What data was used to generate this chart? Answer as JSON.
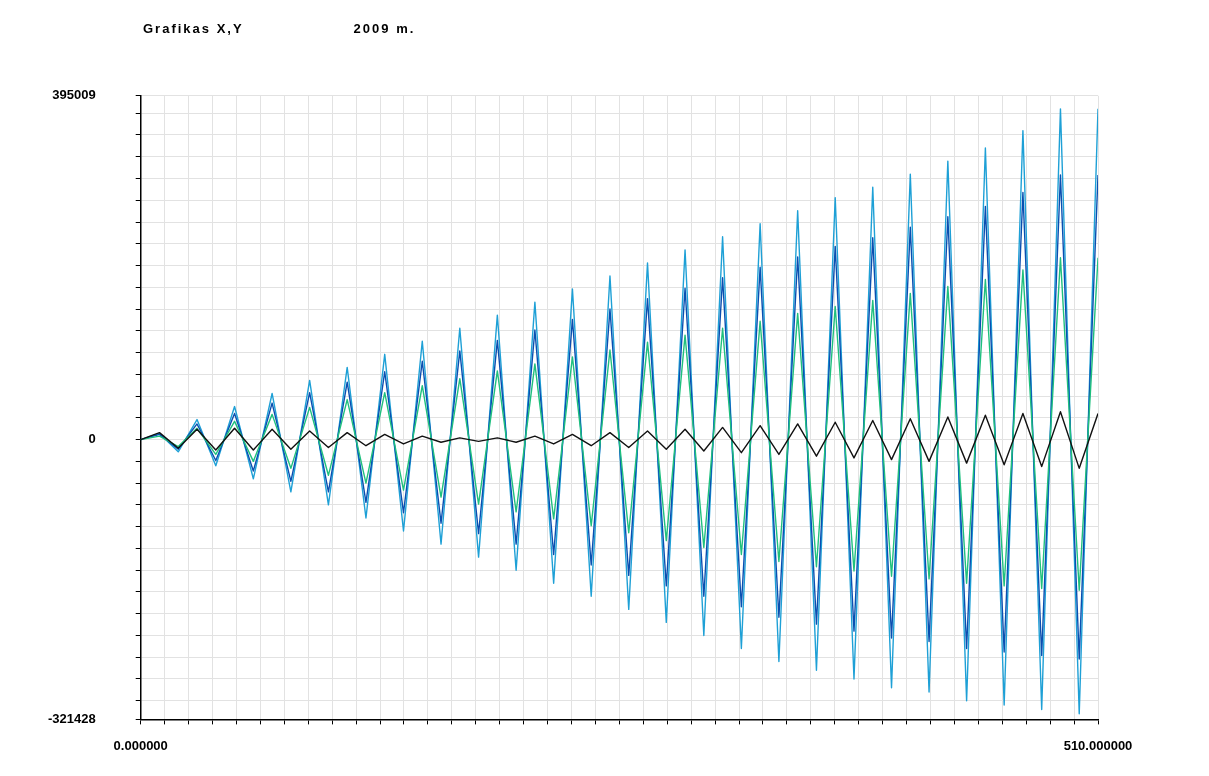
{
  "chart_data": {
    "type": "line",
    "title": "Grafikas X,Y",
    "subtitle": "2009 m.",
    "x": [
      0,
      10,
      20,
      30,
      40,
      50,
      60,
      70,
      80,
      90,
      100,
      110,
      120,
      130,
      140,
      150,
      160,
      170,
      180,
      190,
      200,
      210,
      220,
      230,
      240,
      250,
      260,
      270,
      280,
      290,
      300,
      310,
      320,
      330,
      340,
      350,
      360,
      370,
      380,
      390,
      400,
      410,
      420,
      430,
      440,
      450,
      460,
      470,
      480,
      490,
      500,
      510
    ],
    "series": [
      {
        "color": "#1ea0d6",
        "values": [
          0,
          7000,
          -14000,
          23000,
          -30000,
          38000,
          -45000,
          53000,
          -60000,
          68000,
          -75000,
          83000,
          -90000,
          98000,
          -105000,
          113000,
          -120000,
          128000,
          -135000,
          143000,
          -150000,
          158000,
          -165000,
          173000,
          -180000,
          188000,
          -195000,
          203000,
          -210000,
          218000,
          -225000,
          233000,
          -240000,
          248000,
          -255000,
          263000,
          -265000,
          278000,
          -275000,
          290000,
          -285000,
          305000,
          -290000,
          320000,
          -300000,
          335000,
          -305000,
          355000,
          -310000,
          380000,
          -315000,
          380000
        ]
      },
      {
        "color": "#0a4fb0",
        "values": [
          0,
          6000,
          -11000,
          18000,
          -24000,
          30000,
          -36000,
          42000,
          -48000,
          54000,
          -60000,
          66000,
          -72000,
          78000,
          -84000,
          90000,
          -96000,
          102000,
          -108000,
          114000,
          -120000,
          126000,
          -132000,
          138000,
          -144000,
          150000,
          -156000,
          162000,
          -168000,
          174000,
          -180000,
          186000,
          -192000,
          198000,
          -204000,
          210000,
          -212000,
          222000,
          -220000,
          232000,
          -228000,
          244000,
          -232000,
          256000,
          -240000,
          268000,
          -244000,
          284000,
          -248000,
          304000,
          -252000,
          304000
        ]
      },
      {
        "color": "#1fc07e",
        "values": [
          0,
          4000,
          -8000,
          13000,
          -17000,
          21000,
          -25000,
          29000,
          -33000,
          37000,
          -41000,
          46000,
          -50000,
          54000,
          -58000,
          62000,
          -66000,
          70000,
          -74000,
          79000,
          -83000,
          87000,
          -91000,
          95000,
          -99000,
          103000,
          -107000,
          112000,
          -116000,
          120000,
          -124000,
          128000,
          -132000,
          136000,
          -140000,
          145000,
          -146000,
          153000,
          -151000,
          160000,
          -157000,
          168000,
          -160000,
          176000,
          -165000,
          184000,
          -168000,
          195000,
          -171000,
          209000,
          -173000,
          209000
        ]
      },
      {
        "color": "#111111",
        "values": [
          0,
          8000,
          -10000,
          12000,
          -12000,
          13000,
          -12000,
          12000,
          -11000,
          10000,
          -9000,
          8000,
          -7000,
          6000,
          -5000,
          4000,
          -3000,
          2000,
          -2000,
          2000,
          -3000,
          4000,
          -5000,
          6000,
          -7000,
          8000,
          -9000,
          10000,
          -11000,
          12000,
          -13000,
          14000,
          -15000,
          16000,
          -17000,
          18000,
          -19000,
          20000,
          -21000,
          22000,
          -23000,
          24000,
          -25000,
          26000,
          -27000,
          28000,
          -29000,
          30000,
          -31000,
          32000,
          -33000,
          30000
        ]
      }
    ],
    "xlim": [
      0,
      510
    ],
    "xticks": [
      {
        "value": 0,
        "label": "0.000000"
      },
      {
        "value": 12.75,
        "label": null
      },
      {
        "value": 25.5,
        "label": null
      },
      {
        "value": 38.25,
        "label": null
      },
      {
        "value": 51,
        "label": null
      },
      {
        "value": 63.75,
        "label": null
      },
      {
        "value": 76.5,
        "label": null
      },
      {
        "value": 89.25,
        "label": null
      },
      {
        "value": 102,
        "label": null
      },
      {
        "value": 114.75,
        "label": null
      },
      {
        "value": 127.5,
        "label": null
      },
      {
        "value": 140.25,
        "label": null
      },
      {
        "value": 153,
        "label": null
      },
      {
        "value": 165.75,
        "label": null
      },
      {
        "value": 178.5,
        "label": null
      },
      {
        "value": 191.25,
        "label": null
      },
      {
        "value": 204,
        "label": null
      },
      {
        "value": 216.75,
        "label": null
      },
      {
        "value": 229.5,
        "label": null
      },
      {
        "value": 242.25,
        "label": null
      },
      {
        "value": 255,
        "label": null
      },
      {
        "value": 267.75,
        "label": null
      },
      {
        "value": 280.5,
        "label": null
      },
      {
        "value": 293.25,
        "label": null
      },
      {
        "value": 306,
        "label": null
      },
      {
        "value": 318.75,
        "label": null
      },
      {
        "value": 331.5,
        "label": null
      },
      {
        "value": 344.25,
        "label": null
      },
      {
        "value": 357,
        "label": null
      },
      {
        "value": 369.75,
        "label": null
      },
      {
        "value": 382.5,
        "label": null
      },
      {
        "value": 395.25,
        "label": null
      },
      {
        "value": 408,
        "label": null
      },
      {
        "value": 420.75,
        "label": null
      },
      {
        "value": 433.5,
        "label": null
      },
      {
        "value": 446.25,
        "label": null
      },
      {
        "value": 459,
        "label": null
      },
      {
        "value": 471.75,
        "label": null
      },
      {
        "value": 484.5,
        "label": null
      },
      {
        "value": 497.25,
        "label": null
      },
      {
        "value": 510,
        "label": "510.000000"
      }
    ],
    "ylim": [
      -321428,
      395009
    ],
    "yticks": [
      -321428,
      {
        "value": -300000,
        "label": null
      },
      {
        "value": -275000,
        "label": null
      },
      {
        "value": -250000,
        "label": null
      },
      {
        "value": -225000,
        "label": null
      },
      {
        "value": -200000,
        "label": null
      },
      {
        "value": -175000,
        "label": null
      },
      {
        "value": -150000,
        "label": null
      },
      {
        "value": -125000,
        "label": null
      },
      {
        "value": -100000,
        "label": null
      },
      {
        "value": -75000,
        "label": null
      },
      {
        "value": -50000,
        "label": null
      },
      {
        "value": -25000,
        "label": null
      },
      0,
      {
        "value": 25000,
        "label": null
      },
      {
        "value": 50000,
        "label": null
      },
      {
        "value": 75000,
        "label": null
      },
      {
        "value": 100000,
        "label": null
      },
      {
        "value": 125000,
        "label": null
      },
      {
        "value": 150000,
        "label": null
      },
      {
        "value": 175000,
        "label": null
      },
      {
        "value": 200000,
        "label": null
      },
      {
        "value": 225000,
        "label": null
      },
      {
        "value": 250000,
        "label": null
      },
      {
        "value": 275000,
        "label": null
      },
      {
        "value": 300000,
        "label": null
      },
      {
        "value": 325000,
        "label": null
      },
      {
        "value": 350000,
        "label": null
      },
      {
        "value": 375000,
        "label": null
      },
      395009
    ],
    "grid": true,
    "legend": false,
    "marker": "none",
    "line_style": "solid"
  }
}
